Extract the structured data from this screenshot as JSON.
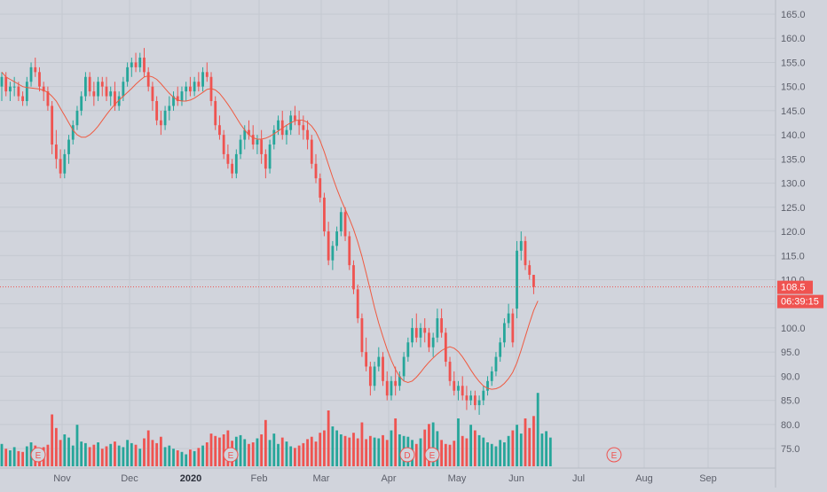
{
  "chart_data": {
    "type": "candlestick",
    "x_ticks": [
      "Nov",
      "Dec",
      "2020",
      "Feb",
      "Mar",
      "Apr",
      "May",
      "Jun",
      "Jul",
      "Aug",
      "Sep"
    ],
    "y_ticks": [
      "165.0",
      "160.0",
      "155.0",
      "150.0",
      "145.0",
      "140.0",
      "135.0",
      "130.0",
      "125.0",
      "120.0",
      "115.0",
      "110.0",
      "105.0",
      "100.0",
      "95.0",
      "90.0",
      "85.0",
      "80.0",
      "75.0"
    ],
    "ylim": [
      72,
      167
    ],
    "grid": true,
    "last_price": {
      "value": 108.5,
      "label": "108.5",
      "countdown": "06:39:15"
    },
    "moving_average": {
      "color": "#ef5a41"
    },
    "colors": {
      "up": "#26a69a",
      "down": "#ef5350",
      "volume_up": "#26a69a",
      "volume_down": "#ef5350",
      "grid": "#c4c8d0",
      "background": "#d1d4dc",
      "axis_text": "#5d606b",
      "price_line": "#ef5350"
    },
    "events": [
      {
        "label": "E",
        "date": "late Oct"
      },
      {
        "label": "E",
        "date": "late Jan"
      },
      {
        "label": "D",
        "date": "mid Apr"
      },
      {
        "label": "E",
        "date": "late Apr"
      },
      {
        "label": "E",
        "date": "late Jul"
      }
    ],
    "series": [
      {
        "name": "price",
        "values": [
          [
            150,
            153,
            147,
            152
          ],
          [
            152,
            153,
            148,
            149
          ],
          [
            149,
            151,
            147,
            150
          ],
          [
            150,
            152,
            148,
            150
          ],
          [
            150,
            151,
            147,
            148
          ],
          [
            148,
            149,
            146,
            147
          ],
          [
            147,
            152,
            146,
            151
          ],
          [
            151,
            155,
            150,
            154
          ],
          [
            154,
            156,
            152,
            153
          ],
          [
            153,
            154,
            149,
            150
          ],
          [
            150,
            151,
            147,
            149
          ],
          [
            149,
            150,
            145,
            146
          ],
          [
            146,
            147,
            136,
            138
          ],
          [
            138,
            141,
            133,
            135
          ],
          [
            135,
            137,
            131,
            132
          ],
          [
            132,
            137,
            131,
            136
          ],
          [
            136,
            140,
            134,
            139
          ],
          [
            139,
            143,
            138,
            142
          ],
          [
            142,
            146,
            141,
            145
          ],
          [
            145,
            149,
            144,
            148
          ],
          [
            148,
            153,
            147,
            152
          ],
          [
            152,
            153,
            148,
            149
          ],
          [
            149,
            151,
            146,
            148
          ],
          [
            148,
            152,
            147,
            151
          ],
          [
            151,
            152,
            148,
            150
          ],
          [
            150,
            152,
            147,
            148
          ],
          [
            148,
            150,
            146,
            149
          ],
          [
            149,
            151,
            145,
            146
          ],
          [
            146,
            149,
            145,
            148
          ],
          [
            148,
            152,
            147,
            151
          ],
          [
            151,
            155,
            150,
            154
          ],
          [
            154,
            156,
            152,
            155
          ],
          [
            155,
            157,
            153,
            154
          ],
          [
            154,
            157,
            153,
            156
          ],
          [
            156,
            158,
            152,
            153
          ],
          [
            153,
            154,
            149,
            150
          ],
          [
            150,
            151,
            145,
            147
          ],
          [
            147,
            148,
            142,
            143
          ],
          [
            143,
            145,
            140,
            142
          ],
          [
            142,
            146,
            141,
            145
          ],
          [
            145,
            148,
            143,
            146
          ],
          [
            146,
            149,
            145,
            148
          ],
          [
            148,
            150,
            146,
            147
          ],
          [
            147,
            150,
            146,
            149
          ],
          [
            149,
            151,
            147,
            150
          ],
          [
            150,
            152,
            148,
            149
          ],
          [
            149,
            152,
            148,
            151
          ],
          [
            151,
            153,
            149,
            150
          ],
          [
            150,
            154,
            149,
            153
          ],
          [
            153,
            155,
            151,
            152
          ],
          [
            152,
            153,
            146,
            147
          ],
          [
            147,
            148,
            141,
            142
          ],
          [
            142,
            144,
            139,
            140
          ],
          [
            140,
            141,
            135,
            136
          ],
          [
            136,
            138,
            133,
            134
          ],
          [
            134,
            135,
            131,
            132
          ],
          [
            132,
            137,
            131,
            136
          ],
          [
            136,
            140,
            135,
            139
          ],
          [
            139,
            142,
            137,
            141
          ],
          [
            141,
            143,
            139,
            140
          ],
          [
            140,
            142,
            137,
            138
          ],
          [
            138,
            140,
            136,
            139
          ],
          [
            139,
            141,
            134,
            136
          ],
          [
            136,
            137,
            131,
            133
          ],
          [
            133,
            139,
            132,
            138
          ],
          [
            138,
            142,
            137,
            141
          ],
          [
            141,
            144,
            140,
            143
          ],
          [
            143,
            145,
            139,
            140
          ],
          [
            140,
            142,
            138,
            141
          ],
          [
            141,
            145,
            140,
            144
          ],
          [
            144,
            146,
            142,
            143
          ],
          [
            143,
            145,
            140,
            142
          ],
          [
            142,
            144,
            139,
            141
          ],
          [
            141,
            143,
            137,
            139
          ],
          [
            139,
            140,
            133,
            134
          ],
          [
            134,
            136,
            130,
            131
          ],
          [
            131,
            132,
            126,
            127
          ],
          [
            127,
            128,
            119,
            120
          ],
          [
            120,
            122,
            113,
            114
          ],
          [
            114,
            118,
            112,
            117
          ],
          [
            117,
            121,
            116,
            120
          ],
          [
            120,
            125,
            119,
            124
          ],
          [
            124,
            125,
            118,
            119
          ],
          [
            119,
            120,
            112,
            113
          ],
          [
            113,
            114,
            107,
            108
          ],
          [
            108,
            109,
            101,
            102
          ],
          [
            102,
            103,
            94,
            95
          ],
          [
            95,
            98,
            91,
            92
          ],
          [
            92,
            93,
            86,
            88
          ],
          [
            88,
            93,
            87,
            92
          ],
          [
            92,
            96,
            91,
            94
          ],
          [
            94,
            95,
            88,
            89
          ],
          [
            89,
            91,
            85,
            86
          ],
          [
            86,
            90,
            85,
            89
          ],
          [
            89,
            92,
            86,
            88
          ],
          [
            88,
            91,
            87,
            90
          ],
          [
            90,
            95,
            89,
            94
          ],
          [
            94,
            98,
            93,
            97
          ],
          [
            97,
            102,
            96,
            100
          ],
          [
            100,
            103,
            97,
            98
          ],
          [
            98,
            101,
            96,
            100
          ],
          [
            100,
            102,
            97,
            99
          ],
          [
            99,
            100,
            95,
            96
          ],
          [
            96,
            99,
            94,
            98
          ],
          [
            98,
            104,
            97,
            102
          ],
          [
            102,
            104,
            98,
            99
          ],
          [
            99,
            100,
            92,
            93
          ],
          [
            93,
            94,
            88,
            89
          ],
          [
            89,
            91,
            86,
            87
          ],
          [
            87,
            89,
            85,
            88
          ],
          [
            88,
            90,
            85,
            86
          ],
          [
            86,
            88,
            83,
            85
          ],
          [
            85,
            87,
            84,
            86
          ],
          [
            86,
            87,
            83,
            84
          ],
          [
            84,
            86,
            82,
            85
          ],
          [
            85,
            88,
            84,
            87
          ],
          [
            87,
            90,
            86,
            89
          ],
          [
            89,
            92,
            88,
            91
          ],
          [
            91,
            95,
            90,
            94
          ],
          [
            94,
            98,
            93,
            97
          ],
          [
            97,
            102,
            96,
            101
          ],
          [
            101,
            105,
            100,
            103
          ],
          [
            103,
            104,
            96,
            97
          ],
          [
            104,
            118,
            102,
            116
          ],
          [
            116,
            120,
            114,
            118
          ],
          [
            118,
            119,
            112,
            113
          ],
          [
            113,
            114,
            110,
            111
          ],
          [
            111,
            111,
            107,
            108.5
          ]
        ]
      },
      {
        "name": "volume",
        "values": [
          28,
          22,
          20,
          24,
          19,
          18,
          25,
          30,
          26,
          21,
          24,
          27,
          65,
          48,
          33,
          40,
          36,
          26,
          52,
          31,
          29,
          24,
          27,
          30,
          22,
          25,
          28,
          31,
          26,
          24,
          33,
          29,
          27,
          22,
          35,
          45,
          33,
          29,
          37,
          24,
          26,
          22,
          20,
          18,
          15,
          21,
          19,
          23,
          26,
          30,
          41,
          38,
          36,
          40,
          45,
          32,
          37,
          39,
          34,
          28,
          30,
          35,
          40,
          58,
          33,
          41,
          28,
          36,
          31,
          25,
          23,
          26,
          29,
          34,
          37,
          31,
          42,
          45,
          70,
          50,
          45,
          40,
          38,
          36,
          42,
          35,
          55,
          34,
          38,
          36,
          35,
          39,
          33,
          45,
          60,
          40,
          38,
          37,
          33,
          28,
          35,
          46,
          53,
          55,
          44,
          33,
          28,
          27,
          32,
          60,
          38,
          35,
          52,
          45,
          39,
          36,
          30,
          28,
          25,
          33,
          30,
          38,
          45,
          52,
          41,
          60,
          48,
          63,
          92,
          41,
          44,
          36
        ]
      },
      {
        "name": "ma",
        "values": [
          153,
          152,
          151.5,
          151,
          150.5,
          150,
          149.8,
          149.7,
          149.6,
          149.5,
          149.2,
          148.8,
          148,
          147,
          145.5,
          144,
          142.5,
          141,
          140,
          139.5,
          139.5,
          140,
          140.8,
          141.8,
          143,
          144.2,
          145.3,
          146.3,
          147.2,
          148,
          148.8,
          149.6,
          150.5,
          151.3,
          152,
          152.2,
          152,
          151.5,
          150.6,
          149.6,
          148.6,
          147.8,
          147.2,
          147,
          147,
          147.2,
          147.6,
          148.2,
          148.8,
          149.4,
          149.6,
          149.3,
          148.6,
          147.5,
          146.3,
          145,
          143.6,
          142.2,
          141,
          140,
          139.4,
          139.1,
          139.1,
          139.3,
          139.7,
          140.2,
          140.8,
          141.4,
          142,
          142.5,
          142.9,
          143.1,
          143,
          142.6,
          141.8,
          140.6,
          138.8,
          136.5,
          133.8,
          131.2,
          128.8,
          126.6,
          124.6,
          122.6,
          120.4,
          117.8,
          114.8,
          111.4,
          107.8,
          104.2,
          101,
          98.2,
          95.6,
          93.3,
          91.4,
          89.9,
          89,
          88.7,
          89,
          89.8,
          90.8,
          91.9,
          92.9,
          93.8,
          94.6,
          95.3,
          95.8,
          96.1,
          95.8,
          95.1,
          94,
          92.7,
          91.3,
          90,
          88.9,
          88,
          87.5,
          87.3,
          87.4,
          87.8,
          88.5,
          89.5,
          90.8,
          92.8,
          95.4,
          98.2,
          101,
          103.6,
          105.6
        ]
      }
    ]
  }
}
